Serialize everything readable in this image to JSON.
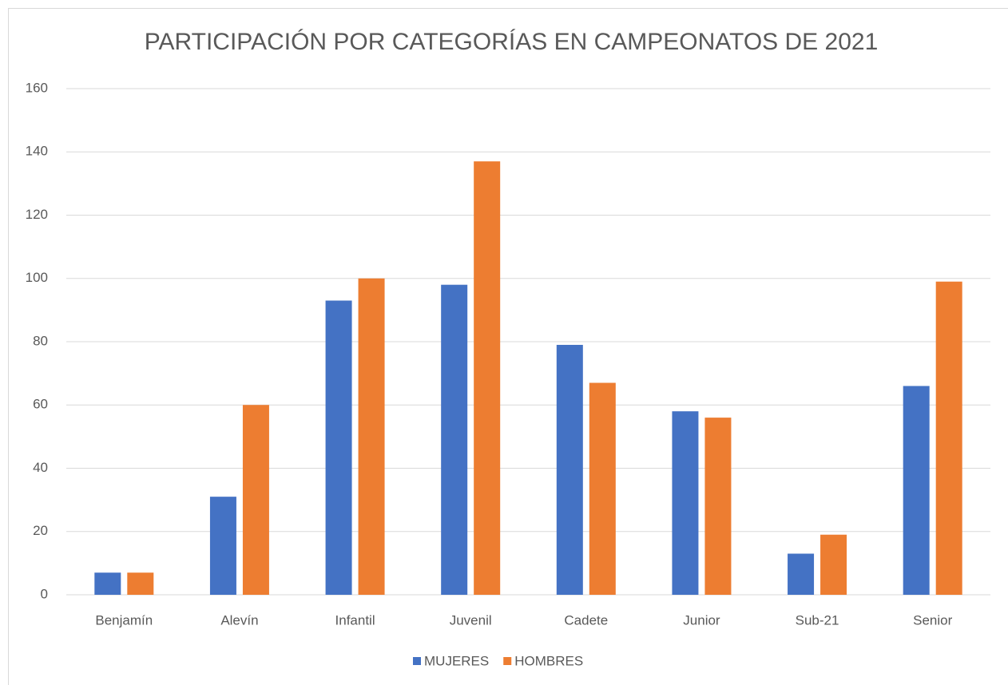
{
  "chart_data": {
    "type": "bar",
    "title": "PARTICIPACIÓN POR CATEGORÍAS EN CAMPEONATOS DE 2021",
    "categories": [
      "Benjamín",
      "Alevín",
      "Infantil",
      "Juvenil",
      "Cadete",
      "Junior",
      "Sub-21",
      "Senior"
    ],
    "series": [
      {
        "name": "MUJERES",
        "color": "#4472c4",
        "values": [
          7,
          31,
          93,
          98,
          79,
          58,
          13,
          66
        ]
      },
      {
        "name": "HOMBRES",
        "color": "#ed7d31",
        "values": [
          7,
          60,
          100,
          137,
          67,
          56,
          19,
          99
        ]
      }
    ],
    "ylim": [
      0,
      160
    ],
    "yticks": [
      0,
      20,
      40,
      60,
      80,
      100,
      120,
      140,
      160
    ],
    "grid": true,
    "legend": "bottom"
  }
}
